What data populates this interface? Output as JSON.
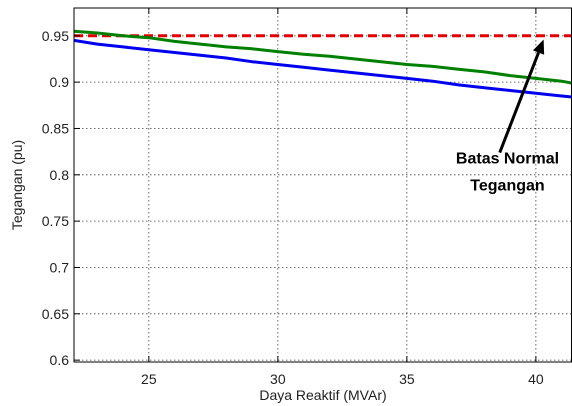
{
  "chart_data": {
    "type": "line",
    "title": "",
    "xlabel": "Daya Reaktif (MVAr)",
    "ylabel": "Tegangan (pu)",
    "xlim": [
      22.1,
      41.4
    ],
    "ylim": [
      0.598,
      0.98
    ],
    "xticks": [
      25,
      30,
      35,
      40
    ],
    "xtick_labels": [
      "25",
      "30",
      "35",
      "40"
    ],
    "yticks": [
      0.6,
      0.65,
      0.7,
      0.75,
      0.8,
      0.85,
      0.9,
      0.95
    ],
    "ytick_labels": [
      "0.6",
      "0.65",
      "0.7",
      "0.75",
      "0.8",
      "0.85",
      "0.9",
      "0.95"
    ],
    "grid": true,
    "grid_style": "dotted",
    "series": [
      {
        "color": "#e00000",
        "style": "dashed",
        "x": [
          22.1,
          41.4
        ],
        "y": [
          0.95,
          0.95
        ]
      },
      {
        "color": "#008000",
        "style": "solid",
        "x": [
          22.1,
          23,
          24,
          25,
          26,
          27,
          28,
          29,
          30,
          31,
          32,
          33,
          34,
          35,
          36,
          37,
          38,
          39,
          40,
          41,
          41.4
        ],
        "y": [
          0.955,
          0.953,
          0.95,
          0.948,
          0.944,
          0.941,
          0.938,
          0.936,
          0.933,
          0.93,
          0.928,
          0.925,
          0.922,
          0.919,
          0.917,
          0.914,
          0.911,
          0.907,
          0.904,
          0.901,
          0.899
        ]
      },
      {
        "color": "#0000ee",
        "style": "solid",
        "x": [
          22.1,
          23,
          24,
          25,
          26,
          27,
          28,
          29,
          30,
          31,
          32,
          33,
          34,
          35,
          36,
          37,
          38,
          39,
          40,
          41,
          41.4
        ],
        "y": [
          0.945,
          0.941,
          0.938,
          0.935,
          0.932,
          0.929,
          0.926,
          0.922,
          0.919,
          0.916,
          0.913,
          0.91,
          0.907,
          0.904,
          0.901,
          0.897,
          0.894,
          0.891,
          0.888,
          0.885,
          0.884
        ]
      }
    ],
    "annotation": {
      "lines": [
        "Batas Normal",
        "Tegangan"
      ],
      "text_at": [
        38.9,
        0.812
      ],
      "arrow_from": [
        38.6,
        0.824
      ],
      "arrow_to": [
        40.3,
        0.946
      ]
    }
  }
}
